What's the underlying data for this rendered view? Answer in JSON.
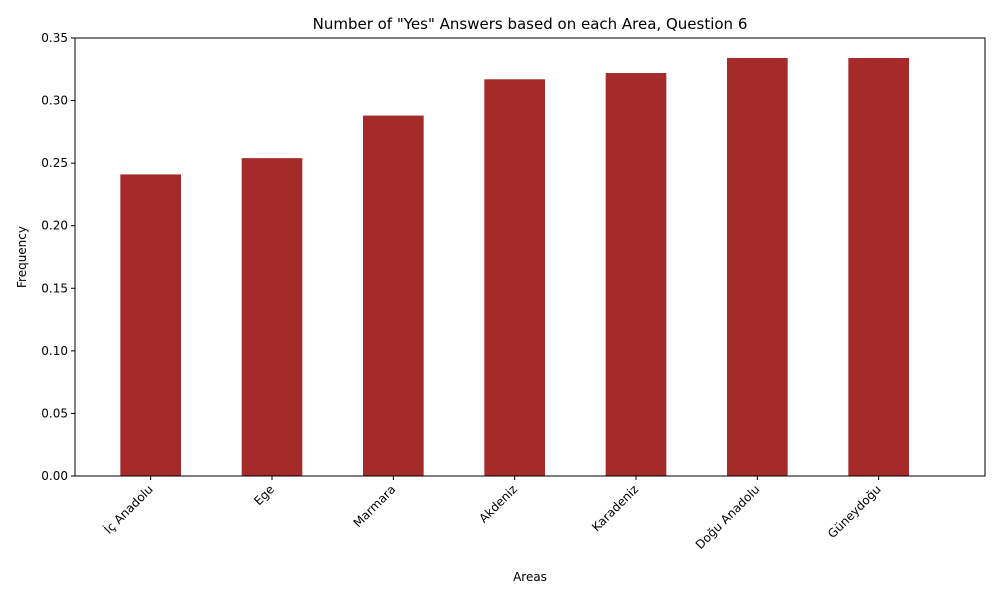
{
  "chart_data": {
    "type": "bar",
    "title": "Number of \"Yes\" Answers based on each Area, Question 6",
    "xlabel": "Areas",
    "ylabel": "Frequency",
    "categories": [
      "İç Anadolu",
      "Ege",
      "Marmara",
      "Akdeniz",
      "Karadeniz",
      "Doğu Anadolu",
      "Güneydoğu"
    ],
    "values": [
      0.241,
      0.254,
      0.288,
      0.317,
      0.322,
      0.334,
      0.334
    ],
    "ylim": [
      0,
      0.35
    ],
    "yticks": [
      "0.00",
      "0.05",
      "0.10",
      "0.15",
      "0.20",
      "0.25",
      "0.30",
      "0.35"
    ],
    "grid": false,
    "bar_color": "#a52a2a"
  }
}
